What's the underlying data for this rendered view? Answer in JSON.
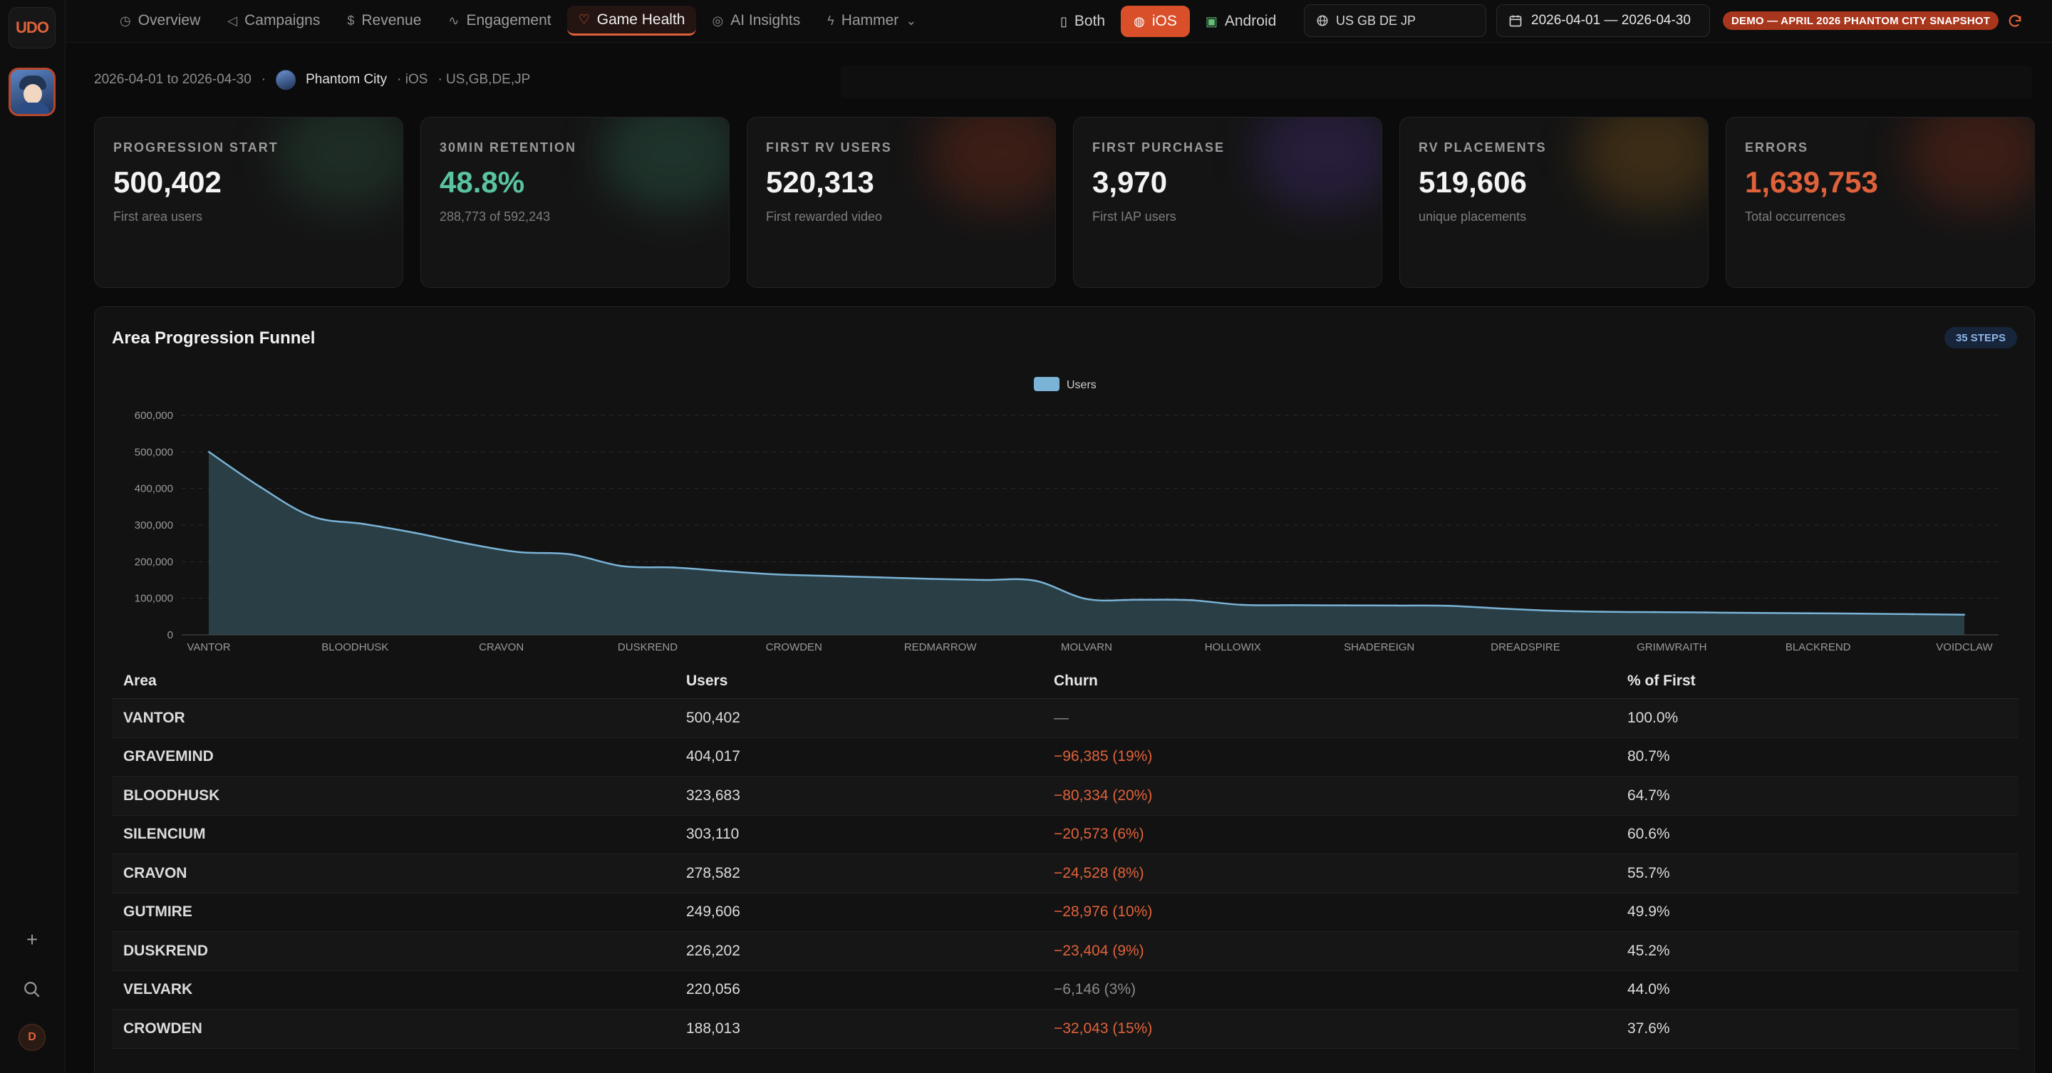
{
  "brand": {
    "logo_text": "UDO"
  },
  "nav": {
    "items": [
      {
        "label": "Overview",
        "icon": "clock-icon"
      },
      {
        "label": "Campaigns",
        "icon": "megaphone-icon"
      },
      {
        "label": "Revenue",
        "icon": "dollar-icon"
      },
      {
        "label": "Engagement",
        "icon": "activity-icon"
      },
      {
        "label": "Game Health",
        "icon": "heart-icon",
        "active": true
      },
      {
        "label": "AI Insights",
        "icon": "brain-icon"
      },
      {
        "label": "Hammer",
        "icon": "bolt-icon"
      }
    ]
  },
  "platforms": {
    "both": "Both",
    "ios": "iOS",
    "android": "Android",
    "selected": "iOS"
  },
  "geo": {
    "value": "US GB DE JP"
  },
  "date_range": {
    "value": "2026-04-01 — 2026-04-30"
  },
  "demo_badge": "DEMO — APRIL 2026 PHANTOM CITY SNAPSHOT",
  "context": {
    "range": "2026-04-01 to 2026-04-30",
    "separator": "·",
    "game": "Phantom City",
    "platform": "· iOS",
    "countries": "· US,GB,DE,JP"
  },
  "user_initial": "D",
  "kpis": [
    {
      "label": "PROGRESSION START",
      "value": "500,402",
      "sub": "First area users",
      "accent": "#2a4a3a",
      "value_style": "normal"
    },
    {
      "label": "30MIN RETENTION",
      "value": "48.8%",
      "sub": "288,773 of 592,243",
      "accent": "#2c5a48",
      "value_style": "green"
    },
    {
      "label": "FIRST RV USERS",
      "value": "520,313",
      "sub": "First rewarded video",
      "accent": "#6a2a1a",
      "value_style": "normal"
    },
    {
      "label": "FIRST PURCHASE",
      "value": "3,970",
      "sub": "First IAP users",
      "accent": "#3e2a6a",
      "value_style": "normal"
    },
    {
      "label": "RV PLACEMENTS",
      "value": "519,606",
      "sub": "unique placements",
      "accent": "#6a4a1a",
      "value_style": "normal"
    },
    {
      "label": "ERRORS",
      "value": "1,639,753",
      "sub": "Total occurrences",
      "accent": "#6a2a1a",
      "value_style": "red"
    }
  ],
  "funnel": {
    "title": "Area Progression Funnel",
    "steps_badge": "35 STEPS",
    "legend": "Users"
  },
  "chart_data": {
    "type": "area",
    "series": [
      {
        "name": "Users",
        "color": "#7ab3d6"
      }
    ],
    "x_tick_labels": [
      "VANTOR",
      "BLOODHUSK",
      "CRAVON",
      "DUSKREND",
      "CROWDEN",
      "REDMARROW",
      "MOLVARN",
      "HOLLOWIX",
      "SHADEREIGN",
      "DREADSPIRE",
      "GRIMWRAITH",
      "BLACKREND",
      "VOIDCLAW"
    ],
    "y_ticks": [
      "600,000",
      "500,000",
      "400,000",
      "300,000",
      "200,000",
      "100,000",
      "0"
    ],
    "ylim": [
      0,
      600000
    ],
    "points": [
      500402,
      404017,
      323683,
      303110,
      278582,
      249606,
      226202,
      220056,
      188013,
      184000,
      174000,
      165000,
      161000,
      157000,
      153000,
      150000,
      148000,
      98000,
      96000,
      95000,
      82000,
      81000,
      80500,
      80000,
      79500,
      72000,
      66000,
      63000,
      62000,
      61000,
      60000,
      59000,
      58000,
      56500,
      55000
    ],
    "grid": true
  },
  "table": {
    "headers": [
      "Area",
      "Users",
      "Churn",
      "% of First"
    ],
    "rows": [
      {
        "area": "VANTOR",
        "users": "500,402",
        "churn": "—",
        "churn_style": "grey",
        "pct": "100.0%"
      },
      {
        "area": "GRAVEMIND",
        "users": "404,017",
        "churn": "−96,385 (19%)",
        "churn_style": "red",
        "pct": "80.7%"
      },
      {
        "area": "BLOODHUSK",
        "users": "323,683",
        "churn": "−80,334 (20%)",
        "churn_style": "red",
        "pct": "64.7%"
      },
      {
        "area": "SILENCIUM",
        "users": "303,110",
        "churn": "−20,573 (6%)",
        "churn_style": "red",
        "pct": "60.6%"
      },
      {
        "area": "CRAVON",
        "users": "278,582",
        "churn": "−24,528 (8%)",
        "churn_style": "red",
        "pct": "55.7%"
      },
      {
        "area": "GUTMIRE",
        "users": "249,606",
        "churn": "−28,976 (10%)",
        "churn_style": "red",
        "pct": "49.9%"
      },
      {
        "area": "DUSKREND",
        "users": "226,202",
        "churn": "−23,404 (9%)",
        "churn_style": "red",
        "pct": "45.2%"
      },
      {
        "area": "VELVARK",
        "users": "220,056",
        "churn": "−6,146 (3%)",
        "churn_style": "grey",
        "pct": "44.0%"
      },
      {
        "area": "CROWDEN",
        "users": "188,013",
        "churn": "−32,043 (15%)",
        "churn_style": "red",
        "pct": "37.6%"
      }
    ]
  }
}
